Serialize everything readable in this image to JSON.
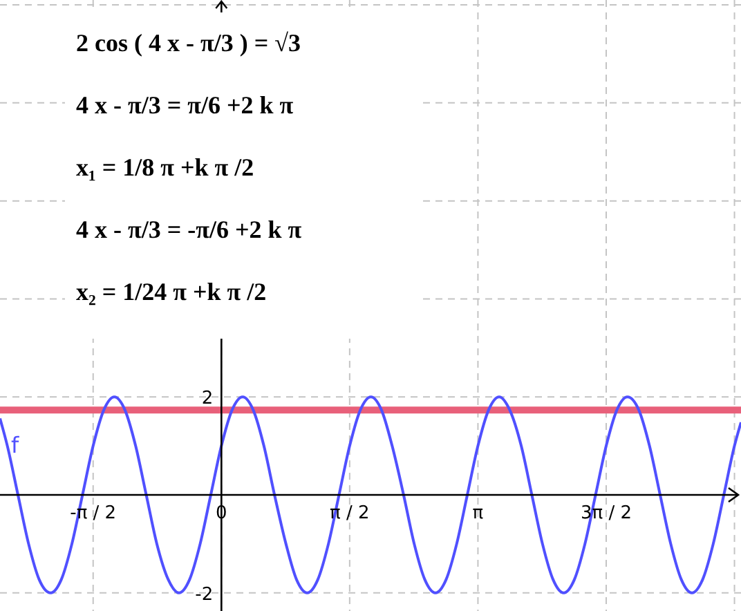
{
  "chart_data": {
    "type": "line",
    "annotations": [
      "2 cos ( 4 x - π/3 ) = √3",
      "4 x - π/3 = π/6 +2 k π",
      "x₁ = 1/8 π +k π /2",
      "4 x - π/3 = -π/6 +2 k π",
      "x₂ = 1/24 π +k π /2"
    ],
    "x": [
      -2.71,
      -2.62,
      -2.49,
      -2.36,
      -2.23,
      -2.09,
      -1.96,
      -1.83,
      -1.7,
      -1.57,
      -1.44,
      -1.31,
      -1.18,
      -1.05,
      -0.92,
      -0.79,
      -0.65,
      -0.52,
      -0.39,
      -0.26,
      -0.13,
      0,
      0.13,
      0.26,
      0.39,
      0.52,
      0.65,
      0.79,
      0.92,
      1.05,
      1.18,
      1.31,
      1.44,
      1.57,
      1.7,
      1.83,
      1.96,
      2.09,
      2.23,
      2.36,
      2.49,
      2.62,
      2.75,
      2.88,
      3.01,
      3.14,
      3.27,
      3.4,
      3.53,
      3.67,
      3.8,
      3.93,
      4.06,
      4.19,
      4.32,
      4.45,
      4.58,
      4.71,
      4.84,
      4.97,
      5.11,
      5.24,
      5.37,
      5.5,
      5.63,
      5.76,
      5.89,
      6.02,
      6.15,
      6.28,
      6.36
    ],
    "series": [
      {
        "name": "f",
        "color": "#5050ff",
        "values": [
          1.56,
          1,
          0,
          -1,
          -1.73,
          -2,
          -1.73,
          -1,
          0,
          1,
          1.73,
          2,
          1.73,
          1,
          0,
          -1,
          -1.73,
          -2,
          -1.73,
          -1,
          0,
          1,
          1.73,
          2,
          1.73,
          1,
          0,
          -1,
          -1.73,
          -2,
          -1.73,
          -1,
          0,
          1,
          1.73,
          2,
          1.73,
          1,
          0,
          -1,
          -1.73,
          -2,
          -1.73,
          -1,
          0,
          1,
          1.73,
          2,
          1.73,
          1,
          0,
          -1,
          -1.73,
          -2,
          -1.73,
          -1,
          0,
          1,
          1.73,
          2,
          1.73,
          1,
          0,
          -1,
          -1.73,
          -2,
          -1.73,
          -1,
          0,
          1,
          1.48
        ]
      }
    ],
    "xlim": [
      -2.71,
      6.36
    ],
    "xticks": [
      {
        "value": -1.57,
        "label": "-π / 2"
      },
      0,
      {
        "value": 1.57,
        "label": "π / 2"
      },
      {
        "value": 3.14,
        "label": "π"
      },
      {
        "value": 4.71,
        "label": "3π / 2"
      },
      {
        "value": 6.28,
        "label": null
      }
    ],
    "ylim": [
      -2.37,
      10.1
    ],
    "yticks": [
      -2,
      2,
      {
        "value": 4,
        "label": null
      },
      {
        "value": 6,
        "label": null
      },
      {
        "value": 8,
        "label": null
      },
      {
        "value": 10,
        "label": null
      }
    ],
    "ref_lines": [
      {
        "axis": "y",
        "value": 1.73,
        "color": "#e8607a"
      }
    ],
    "grid": true
  }
}
